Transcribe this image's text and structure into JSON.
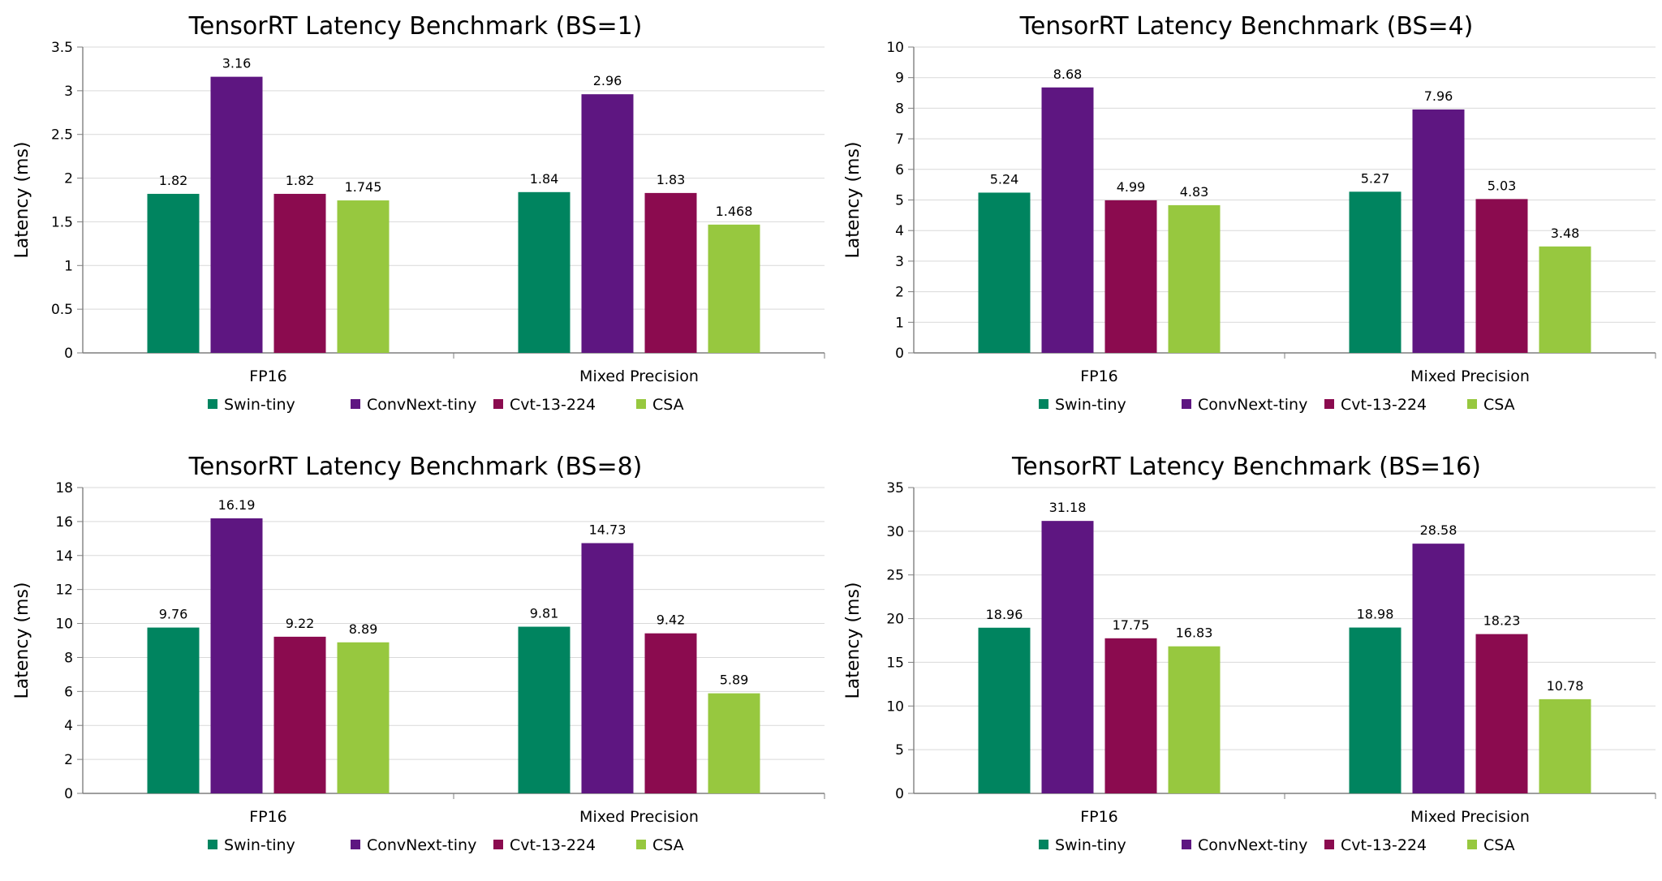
{
  "colors": {
    "Swin-tiny": "#00845f",
    "ConvNext-tiny": "#5e1681",
    "Cvt-13-224": "#8b0b4f",
    "CSA": "#97c83f"
  },
  "chart_data": [
    {
      "type": "bar",
      "title": "TensorRT Latency Benchmark (BS=1)",
      "xlabel": "",
      "ylabel": "Latency (ms)",
      "categories": [
        "FP16",
        "Mixed Precision"
      ],
      "ylim": [
        0,
        3.5
      ],
      "yticks": [
        "0",
        "0.5",
        "1",
        "1.5",
        "2",
        "2.5",
        "3",
        "3.5"
      ],
      "legend_position": "bottom",
      "grid": true,
      "series": [
        {
          "name": "Swin-tiny",
          "values": [
            1.82,
            1.84
          ],
          "labels": [
            "1.82",
            "1.84"
          ]
        },
        {
          "name": "ConvNext-tiny",
          "values": [
            3.16,
            2.96
          ],
          "labels": [
            "3.16",
            "2.96"
          ]
        },
        {
          "name": "Cvt-13-224",
          "values": [
            1.82,
            1.83
          ],
          "labels": [
            "1.82",
            "1.83"
          ]
        },
        {
          "name": "CSA",
          "values": [
            1.745,
            1.468
          ],
          "labels": [
            "1.745",
            "1.468"
          ]
        }
      ]
    },
    {
      "type": "bar",
      "title": "TensorRT Latency Benchmark (BS=4)",
      "xlabel": "",
      "ylabel": "Latency (ms)",
      "categories": [
        "FP16",
        "Mixed Precision"
      ],
      "ylim": [
        0,
        10
      ],
      "yticks": [
        "0",
        "1",
        "2",
        "3",
        "4",
        "5",
        "6",
        "7",
        "8",
        "9",
        "10"
      ],
      "legend_position": "bottom",
      "grid": true,
      "series": [
        {
          "name": "Swin-tiny",
          "values": [
            5.24,
            5.27
          ],
          "labels": [
            "5.24",
            "5.27"
          ]
        },
        {
          "name": "ConvNext-tiny",
          "values": [
            8.68,
            7.96
          ],
          "labels": [
            "8.68",
            "7.96"
          ]
        },
        {
          "name": "Cvt-13-224",
          "values": [
            4.99,
            5.03
          ],
          "labels": [
            "4.99",
            "5.03"
          ]
        },
        {
          "name": "CSA",
          "values": [
            4.83,
            3.48
          ],
          "labels": [
            "4.83",
            "3.48"
          ]
        }
      ]
    },
    {
      "type": "bar",
      "title": "TensorRT Latency Benchmark (BS=8)",
      "xlabel": "",
      "ylabel": "Latency (ms)",
      "categories": [
        "FP16",
        "Mixed Precision"
      ],
      "ylim": [
        0,
        18
      ],
      "yticks": [
        "0",
        "2",
        "4",
        "6",
        "8",
        "10",
        "12",
        "14",
        "16",
        "18"
      ],
      "legend_position": "bottom",
      "grid": true,
      "series": [
        {
          "name": "Swin-tiny",
          "values": [
            9.76,
            9.81
          ],
          "labels": [
            "9.76",
            "9.81"
          ]
        },
        {
          "name": "ConvNext-tiny",
          "values": [
            16.19,
            14.73
          ],
          "labels": [
            "16.19",
            "14.73"
          ]
        },
        {
          "name": "Cvt-13-224",
          "values": [
            9.22,
            9.42
          ],
          "labels": [
            "9.22",
            "9.42"
          ]
        },
        {
          "name": "CSA",
          "values": [
            8.89,
            5.89
          ],
          "labels": [
            "8.89",
            "5.89"
          ]
        }
      ]
    },
    {
      "type": "bar",
      "title": "TensorRT Latency Benchmark (BS=16)",
      "xlabel": "",
      "ylabel": "Latency (ms)",
      "categories": [
        "FP16",
        "Mixed Precision"
      ],
      "ylim": [
        0,
        35
      ],
      "yticks": [
        "0",
        "5",
        "10",
        "15",
        "20",
        "25",
        "30",
        "35"
      ],
      "legend_position": "bottom",
      "grid": true,
      "series": [
        {
          "name": "Swin-tiny",
          "values": [
            18.96,
            18.98
          ],
          "labels": [
            "18.96",
            "18.98"
          ]
        },
        {
          "name": "ConvNext-tiny",
          "values": [
            31.18,
            28.58
          ],
          "labels": [
            "31.18",
            "28.58"
          ]
        },
        {
          "name": "Cvt-13-224",
          "values": [
            17.75,
            18.23
          ],
          "labels": [
            "17.75",
            "18.23"
          ]
        },
        {
          "name": "CSA",
          "values": [
            16.83,
            10.78
          ],
          "labels": [
            "16.83",
            "10.78"
          ]
        }
      ]
    }
  ]
}
